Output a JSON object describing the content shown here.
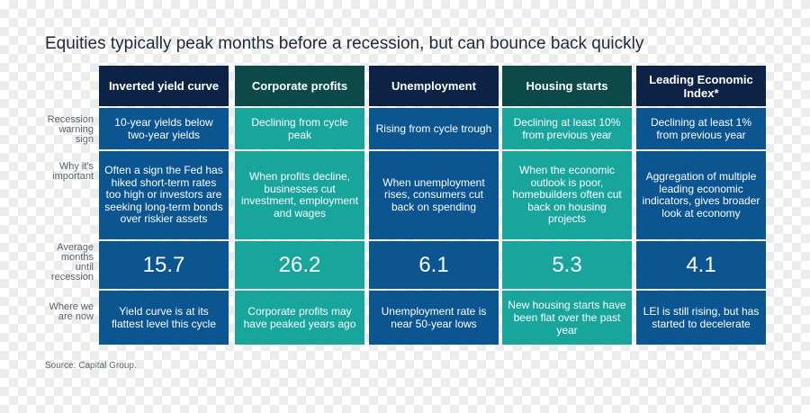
{
  "title": "Equities typically peak months before a recession, but can bounce back quickly",
  "row_labels": [
    "Recession warning sign",
    "Why it's important",
    "Average months until recession",
    "Where we are now"
  ],
  "columns": [
    {
      "header": "Inverted yield curve",
      "warning_sign": "10-year yields below two-year yields",
      "why_important": "Often a sign the Fed has hiked short-term rates too high or investors are seeking long-term bonds over riskier assets",
      "avg_months": "15.7",
      "now": "Yield curve is at its flattest level this cycle",
      "color": "navy"
    },
    {
      "header": "Corporate profits",
      "warning_sign": "Declining from cycle peak",
      "why_important": "When profits decline, businesses cut investment, employment and wages",
      "avg_months": "26.2",
      "now": "Corporate profits may have peaked years ago",
      "color": "teal"
    },
    {
      "header": "Unemployment",
      "warning_sign": "Rising from cycle trough",
      "why_important": "When unemployment rises, consumers cut back on spending",
      "avg_months": "6.1",
      "now": "Unemployment rate is near 50-year lows",
      "color": "navy"
    },
    {
      "header": "Housing starts",
      "warning_sign": "Declining at least 10% from previous year",
      "why_important": "When the economic outlook is poor, homebuilders often cut back on housing projects",
      "avg_months": "5.3",
      "now": "New housing starts have been flat over the past year",
      "color": "teal"
    },
    {
      "header": "Leading Economic Index*",
      "warning_sign": "Declining at least 1% from previous year",
      "why_important": "Aggregation of multiple leading economic indicators, gives broader look at economy",
      "avg_months": "4.1",
      "now": "LEI is still rising, but has started to decelerate",
      "color": "navy"
    }
  ],
  "source": "Source: Capital Group.",
  "colors": {
    "navy_header": "#0d2345",
    "navy_body": "#0b5591",
    "teal_header": "#0c4a49",
    "teal_body": "#17a59c"
  }
}
